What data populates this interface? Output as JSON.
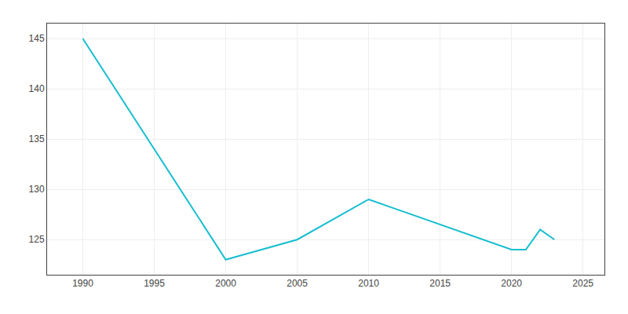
{
  "chart_data": {
    "type": "line",
    "x": [
      1990,
      2000,
      2005,
      2010,
      2020,
      2021,
      2022,
      2023
    ],
    "values": [
      145,
      123,
      125,
      129,
      124,
      124,
      126,
      125
    ],
    "color": "#17BECF",
    "xlim": [
      1987.5,
      2026.5
    ],
    "ylim": [
      121.5,
      146.5
    ],
    "xticks": [
      1990,
      1995,
      2000,
      2005,
      2010,
      2015,
      2020,
      2025
    ],
    "yticks": [
      125,
      130,
      135,
      140,
      145
    ],
    "grid": true
  }
}
